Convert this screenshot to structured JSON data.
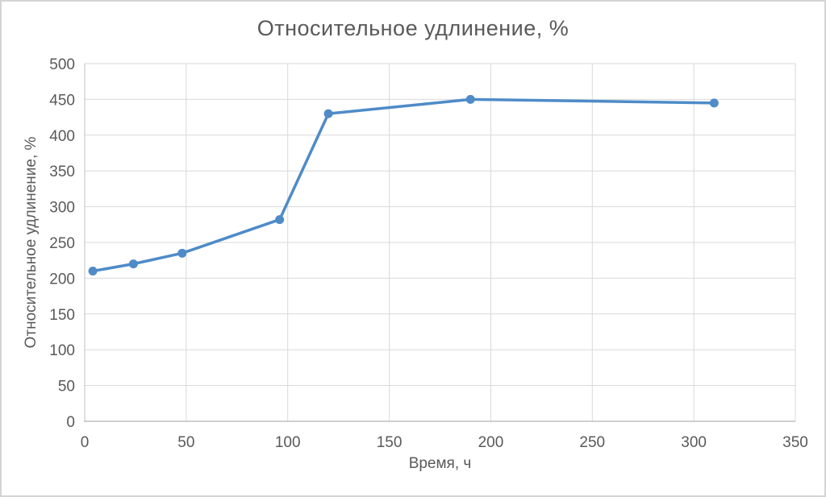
{
  "chart_data": {
    "type": "line",
    "title": "Относительное удлинение, %",
    "xlabel": "Время, ч",
    "ylabel": "Относительное удлинение, %",
    "x": [
      4,
      24,
      48,
      96,
      120,
      190,
      310
    ],
    "y": [
      210,
      220,
      235,
      282,
      430,
      450,
      445
    ],
    "xlim": [
      0,
      350
    ],
    "ylim": [
      0,
      500
    ],
    "x_ticks": [
      0,
      50,
      100,
      150,
      200,
      250,
      300,
      350
    ],
    "y_ticks": [
      0,
      50,
      100,
      150,
      200,
      250,
      300,
      350,
      400,
      450,
      500
    ],
    "grid": true,
    "legend": false,
    "marker": "circle",
    "colors": {
      "series": "#4e8bc8",
      "grid": "#d9d9d9",
      "axis": "#bfbfbf",
      "text": "#595959",
      "frame": "#d4d4d4"
    }
  }
}
